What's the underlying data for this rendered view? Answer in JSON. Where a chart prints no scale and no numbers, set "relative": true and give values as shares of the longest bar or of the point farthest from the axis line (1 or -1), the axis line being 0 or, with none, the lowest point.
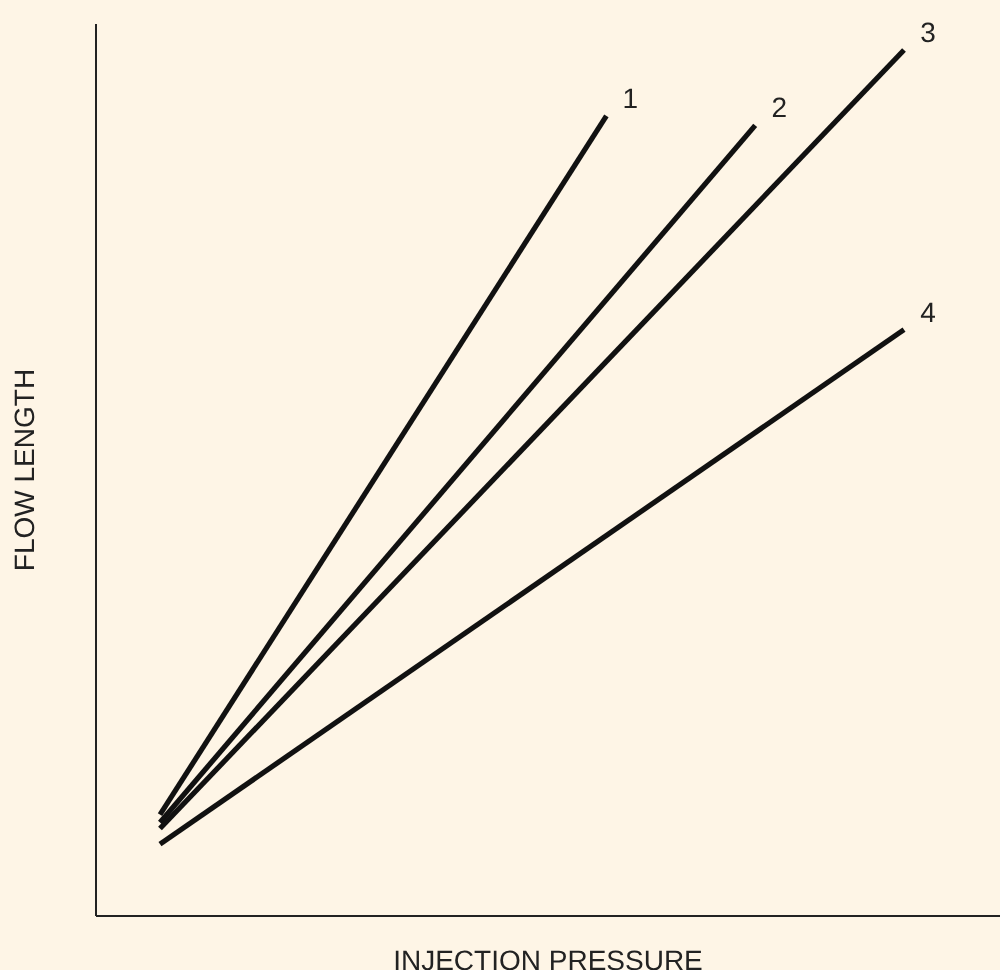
{
  "chart_data": {
    "type": "line",
    "relative": true,
    "xlabel": "INJECTION PRESSURE",
    "ylabel": "FLOW LENGTH",
    "legend": false,
    "grid": false,
    "marker": "none",
    "line_style": "solid",
    "categories": [
      null,
      null,
      null,
      null,
      null,
      null
    ],
    "series": [
      {
        "name": "1",
        "color": "#111111",
        "values": [
          0.117,
          null,
          null,
          0.924,
          null,
          null
        ]
      },
      {
        "name": "2",
        "color": "#111111",
        "values": [
          0.108,
          null,
          null,
          null,
          0.913,
          null
        ]
      },
      {
        "name": "3",
        "color": "#111111",
        "values": [
          0.101,
          null,
          null,
          null,
          null,
          1
        ]
      },
      {
        "name": "4",
        "color": "#111111",
        "values": [
          0.083,
          null,
          null,
          null,
          null,
          0.677
        ]
      }
    ]
  }
}
